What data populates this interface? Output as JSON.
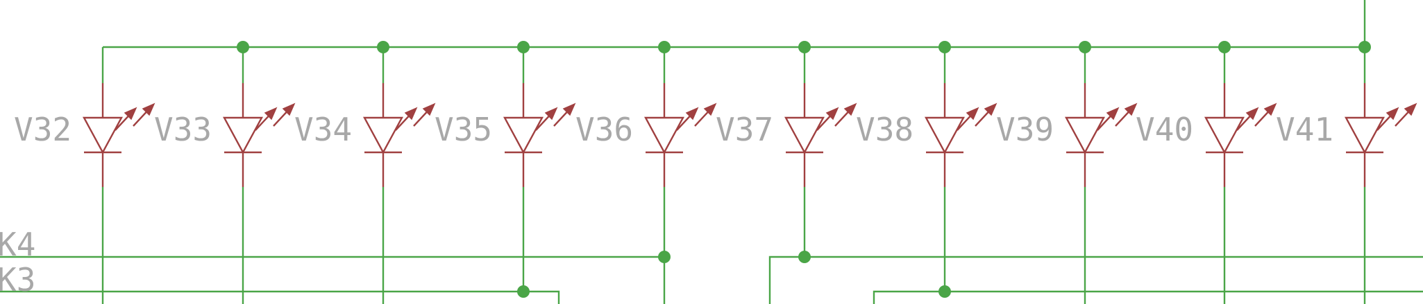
{
  "colors": {
    "wire": "#4aa547",
    "component": "#a04040",
    "label": "#a8a8a8",
    "background": "#ffffff"
  },
  "net_labels": [
    "K4",
    "K3"
  ],
  "leds": [
    {
      "label": "V32"
    },
    {
      "label": "V33"
    },
    {
      "label": "V34"
    },
    {
      "label": "V35"
    },
    {
      "label": "V36"
    },
    {
      "label": "V37"
    },
    {
      "label": "V38"
    },
    {
      "label": "V39"
    },
    {
      "label": "V40"
    },
    {
      "label": "V41"
    }
  ]
}
